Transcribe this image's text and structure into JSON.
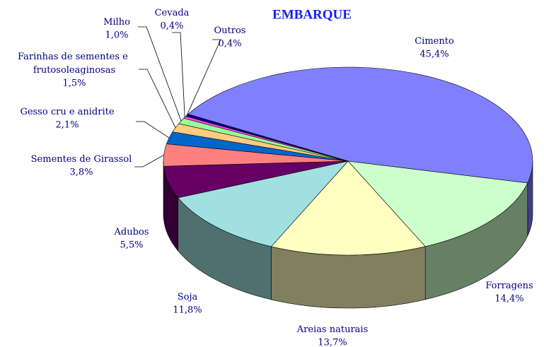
{
  "chart_data": {
    "type": "pie3d",
    "title": "EMBARQUE",
    "categories": [
      "Cimento",
      "Forragens",
      "Areias naturais",
      "Soja",
      "Adubos",
      "Sementes de Girassol",
      "Gesso cru e anidrite",
      "Farinhas de sementes e frutosoleaginosas",
      "Milho",
      "Cevada",
      "Outros"
    ],
    "values": [
      45.4,
      14.4,
      13.7,
      11.8,
      5.5,
      3.8,
      2.1,
      1.5,
      1.0,
      0.4,
      0.4
    ],
    "value_labels": [
      "45,4%",
      "14,4%",
      "13,7%",
      "11,8%",
      "5,5%",
      "3,8%",
      "2,1%",
      "1,5%",
      "1,0%",
      "0,4%",
      "0,4%"
    ],
    "colors": [
      "#8080ff",
      "#ccffcc",
      "#ffffc0",
      "#a0e0e0",
      "#660066",
      "#ff8080",
      "#0066cc",
      "#ffcc80",
      "#99ff99",
      "#ff40ff",
      "#000080"
    ]
  }
}
